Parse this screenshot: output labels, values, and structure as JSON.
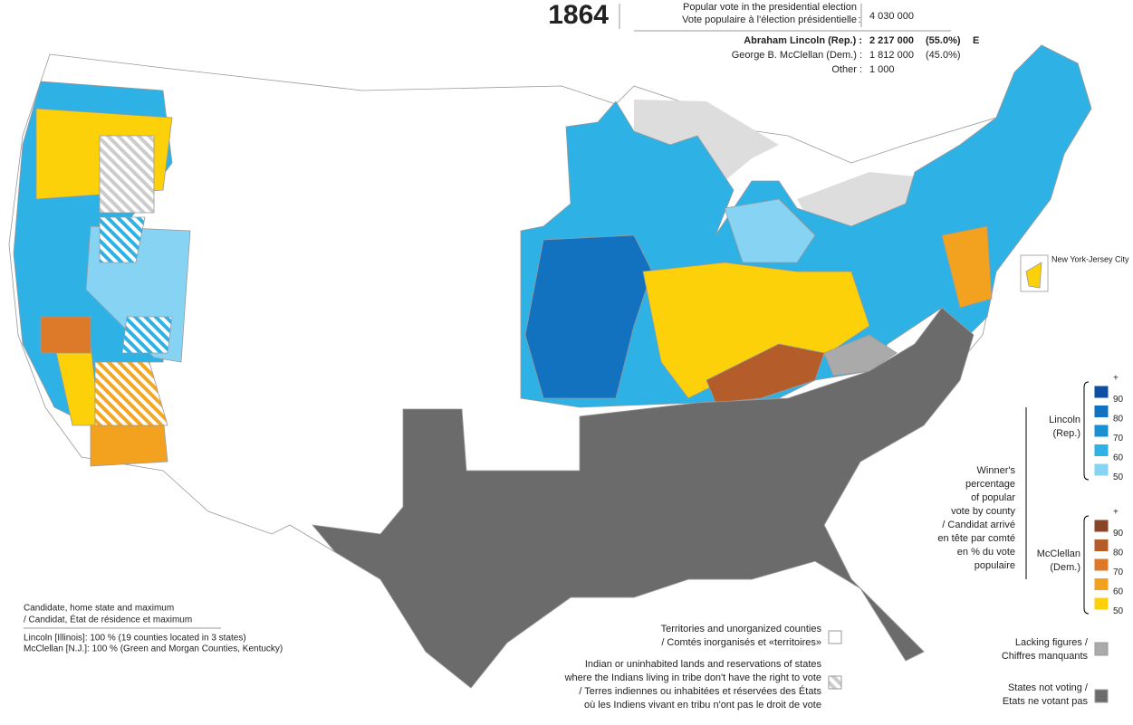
{
  "header": {
    "year": "1864",
    "total_label_en": "Popular vote in the presidential election",
    "total_label_fr": "Vote populaire à l'élection présidentielle",
    "total_sep": ":",
    "total": "4 030 000",
    "rows": [
      {
        "name": "Abraham Lincoln (Rep.) :",
        "votes": "2 217 000",
        "pct": "(55.0%)",
        "mark": "E"
      },
      {
        "name": "George B. McClellan (Dem.) :",
        "votes": "1 812 000",
        "pct": "(45.0%)"
      },
      {
        "name": "Other :",
        "votes": "1 000"
      }
    ]
  },
  "inset": {
    "label": "New York-Jersey City"
  },
  "legend": {
    "caption": [
      "Winner's",
      "percentage",
      "of popular",
      "vote by county",
      "/ Candidat arrivé",
      "en tête par comté",
      "en % du vote",
      "populaire"
    ],
    "lincoln": {
      "label": [
        "Lincoln",
        "(Rep.)"
      ],
      "ticks": [
        "+",
        "90",
        "80",
        "70",
        "60",
        "50"
      ],
      "colors": [
        "#0d4fa3",
        "#1372bf",
        "#1b8fd4",
        "#2eb2e6",
        "#86d3f4"
      ]
    },
    "mcclellan": {
      "label": [
        "McClellan",
        "(Dem.)"
      ],
      "ticks": [
        "+",
        "90",
        "80",
        "70",
        "60",
        "50"
      ],
      "colors": [
        "#8a4526",
        "#b45d2a",
        "#dd7a2a",
        "#f2a21f",
        "#fdd10a"
      ]
    },
    "territories": [
      "Territories and unorganized counties",
      "/ Comtés inorganisés et «territoires»"
    ],
    "indian": [
      "Indian or uninhabited lands and reservations of states",
      "where the Indians living in tribe don't have the right to vote",
      "/ Terres indiennes ou inhabitées et réservées des États",
      "où les Indiens vivant en tribu n'ont pas le droit de vote"
    ],
    "lacking": [
      "Lacking figures /",
      "Chiffres manquants"
    ],
    "not_voting": [
      "States not voting /",
      "Etats ne votant pas"
    ]
  },
  "notes": {
    "title": [
      "Candidate, home state and maximum",
      "/ Candidat, État de résidence et maximum"
    ],
    "lines": [
      "Lincoln [Illinois]: 100 % (19 counties located in 3 states)",
      "McClellan [N.J.]: 100 % (Green and Morgan Counties, Kentucky)"
    ]
  }
}
